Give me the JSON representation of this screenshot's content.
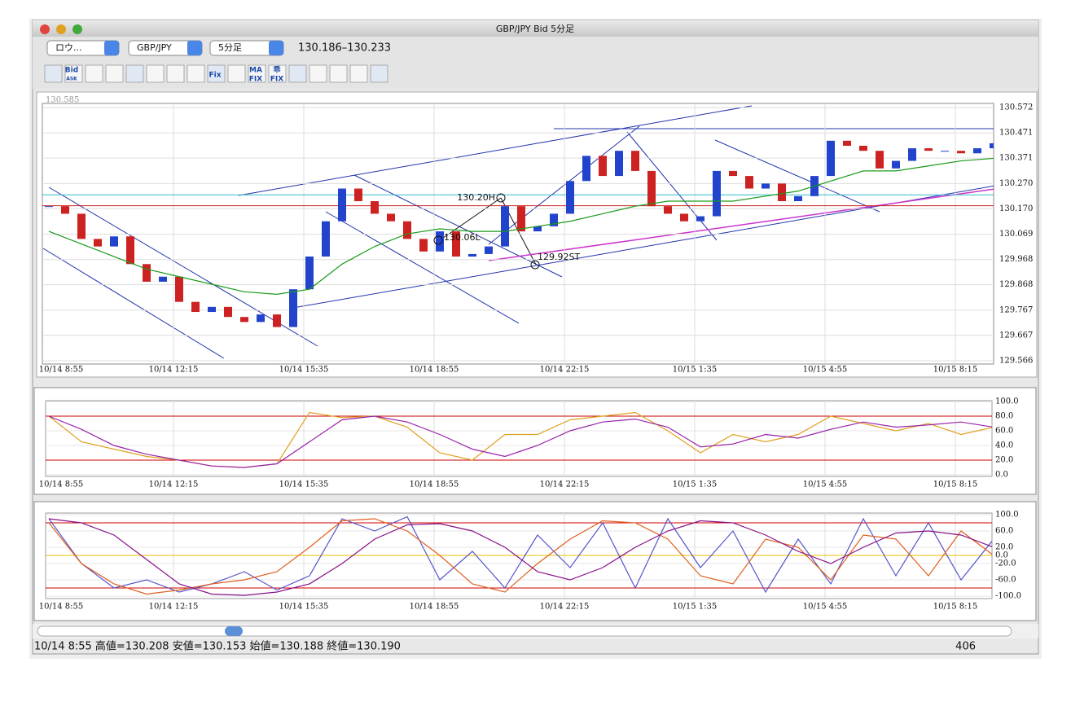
{
  "window": {
    "title": "GBP/JPY Bid 5分足"
  },
  "toolbar": {
    "selects": [
      "ロウ...",
      "GBP/JPY",
      "5分足"
    ],
    "range": "130.186–130.233",
    "icon_labels": [
      "Bid",
      "ASK",
      "Fix",
      "MA",
      "FIX",
      "乖",
      "FIX"
    ]
  },
  "main_chart": {
    "type": "candlestick",
    "corner_label": "130.585",
    "ylim": [
      129.566,
      130.572
    ],
    "yticks": [
      130.572,
      130.471,
      130.371,
      {
        "value": 130.27,
        "label": "130.270"
      },
      {
        "value": 130.17,
        "label": "130.170"
      },
      130.069,
      129.968,
      129.868,
      129.767,
      129.667,
      129.566
    ],
    "categories": [
      "10/14 8:55",
      "10/14 12:15",
      "10/14 15:35",
      "10/14 18:55",
      "10/14 22:15",
      "10/15 1:35",
      "10/15 4:55",
      "10/15 8:15"
    ],
    "close": [
      130.18,
      130.15,
      130.05,
      130.02,
      130.06,
      129.95,
      129.88,
      129.9,
      129.8,
      129.76,
      129.78,
      129.74,
      129.72,
      129.75,
      129.7,
      129.85,
      129.98,
      130.12,
      130.25,
      130.2,
      130.15,
      130.12,
      130.05,
      130.0,
      130.08,
      129.98,
      129.99,
      130.02,
      130.18,
      130.08,
      130.1,
      130.15,
      130.28,
      130.38,
      130.3,
      130.4,
      130.32,
      130.18,
      130.15,
      130.12,
      130.14,
      130.32,
      130.3,
      130.25,
      130.27,
      130.2,
      130.22,
      130.3,
      130.44,
      130.42,
      130.4,
      130.33,
      130.36,
      130.41,
      130.4,
      130.4,
      130.39,
      130.41,
      130.43
    ],
    "up_color": "#2244cc",
    "down_color": "#cc2222",
    "ma": {
      "color": "#1a9a1a",
      "values": [
        130.08,
        130.03,
        129.98,
        129.93,
        129.9,
        129.87,
        129.84,
        129.83,
        129.85,
        129.95,
        130.02,
        130.07,
        130.09,
        130.08,
        130.08,
        130.1,
        130.12,
        130.15,
        130.18,
        130.2,
        130.2,
        130.2,
        130.22,
        130.24,
        130.28,
        130.32,
        130.32,
        130.34,
        130.36,
        130.37
      ]
    },
    "levels": [
      {
        "value": 130.225,
        "color": "#33bbcc"
      },
      {
        "value": 130.182,
        "color": "#cc2222"
      }
    ],
    "annotations": [
      "130.20H",
      "130.06L",
      "129.92ST"
    ]
  },
  "oscillator_1": {
    "type": "line",
    "ylim": [
      0,
      100
    ],
    "yticks": [
      {
        "value": 100,
        "label": "100.0"
      },
      {
        "value": 80,
        "label": "80.0"
      },
      {
        "value": 60,
        "label": "60.0"
      },
      {
        "value": 40,
        "label": "40.0"
      },
      {
        "value": 20,
        "label": "20.0"
      },
      {
        "value": 0,
        "label": "0.0"
      }
    ],
    "levels": [
      {
        "value": 80,
        "color": "#cc0000"
      },
      {
        "value": 20,
        "color": "#cc0000"
      }
    ],
    "series": [
      {
        "color": "#e0a020",
        "values": [
          80,
          45,
          35,
          25,
          20,
          12,
          10,
          15,
          85,
          78,
          80,
          65,
          30,
          20,
          55,
          55,
          75,
          80,
          85,
          60,
          30,
          55,
          45,
          55,
          80,
          70,
          60,
          70,
          55,
          65
        ]
      },
      {
        "color": "#9922aa",
        "values": [
          80,
          62,
          40,
          28,
          20,
          12,
          10,
          15,
          45,
          75,
          80,
          72,
          55,
          35,
          25,
          40,
          60,
          72,
          76,
          65,
          38,
          42,
          55,
          50,
          62,
          72,
          65,
          68,
          72,
          65
        ]
      }
    ]
  },
  "oscillator_2": {
    "type": "line",
    "ylim": [
      -100,
      100
    ],
    "yticks": [
      {
        "value": 100,
        "label": "100.0"
      },
      {
        "value": 60,
        "label": "60.0"
      },
      {
        "value": 20,
        "label": "20.0"
      },
      {
        "value": 0,
        "label": "0.0"
      },
      {
        "value": -20,
        "label": "-20.0"
      },
      {
        "value": -60,
        "label": "-60.0"
      },
      {
        "value": -100,
        "label": "-100.0"
      }
    ],
    "levels": [
      {
        "value": 80,
        "color": "#cc0000"
      },
      {
        "value": 0,
        "color": "#e8c000"
      },
      {
        "value": -80,
        "color": "#cc0000"
      }
    ],
    "series": [
      {
        "color": "#5555cc",
        "values": [
          90,
          -20,
          -80,
          -60,
          -90,
          -70,
          -40,
          -85,
          -50,
          90,
          60,
          95,
          -60,
          10,
          -80,
          50,
          -30,
          80,
          -80,
          90,
          -30,
          60,
          -90,
          40,
          -70,
          90,
          -50,
          80,
          -60,
          40
        ]
      },
      {
        "color": "#e06020",
        "values": [
          80,
          -20,
          -70,
          -95,
          -85,
          -70,
          -60,
          -40,
          20,
          85,
          90,
          60,
          0,
          -70,
          -90,
          -20,
          40,
          85,
          80,
          40,
          -50,
          -70,
          40,
          20,
          -60,
          50,
          40,
          -50,
          60,
          0
        ]
      },
      {
        "color": "#881188",
        "values": [
          90,
          80,
          50,
          -10,
          -70,
          -95,
          -98,
          -90,
          -70,
          -20,
          40,
          75,
          78,
          60,
          20,
          -40,
          -60,
          -30,
          20,
          60,
          85,
          80,
          50,
          10,
          -20,
          20,
          55,
          60,
          50,
          20
        ]
      }
    ]
  },
  "status": {
    "text": "10/14 8:55  高値=130.208 安値=130.153 始値=130.188 終値=130.190",
    "count": 406
  }
}
